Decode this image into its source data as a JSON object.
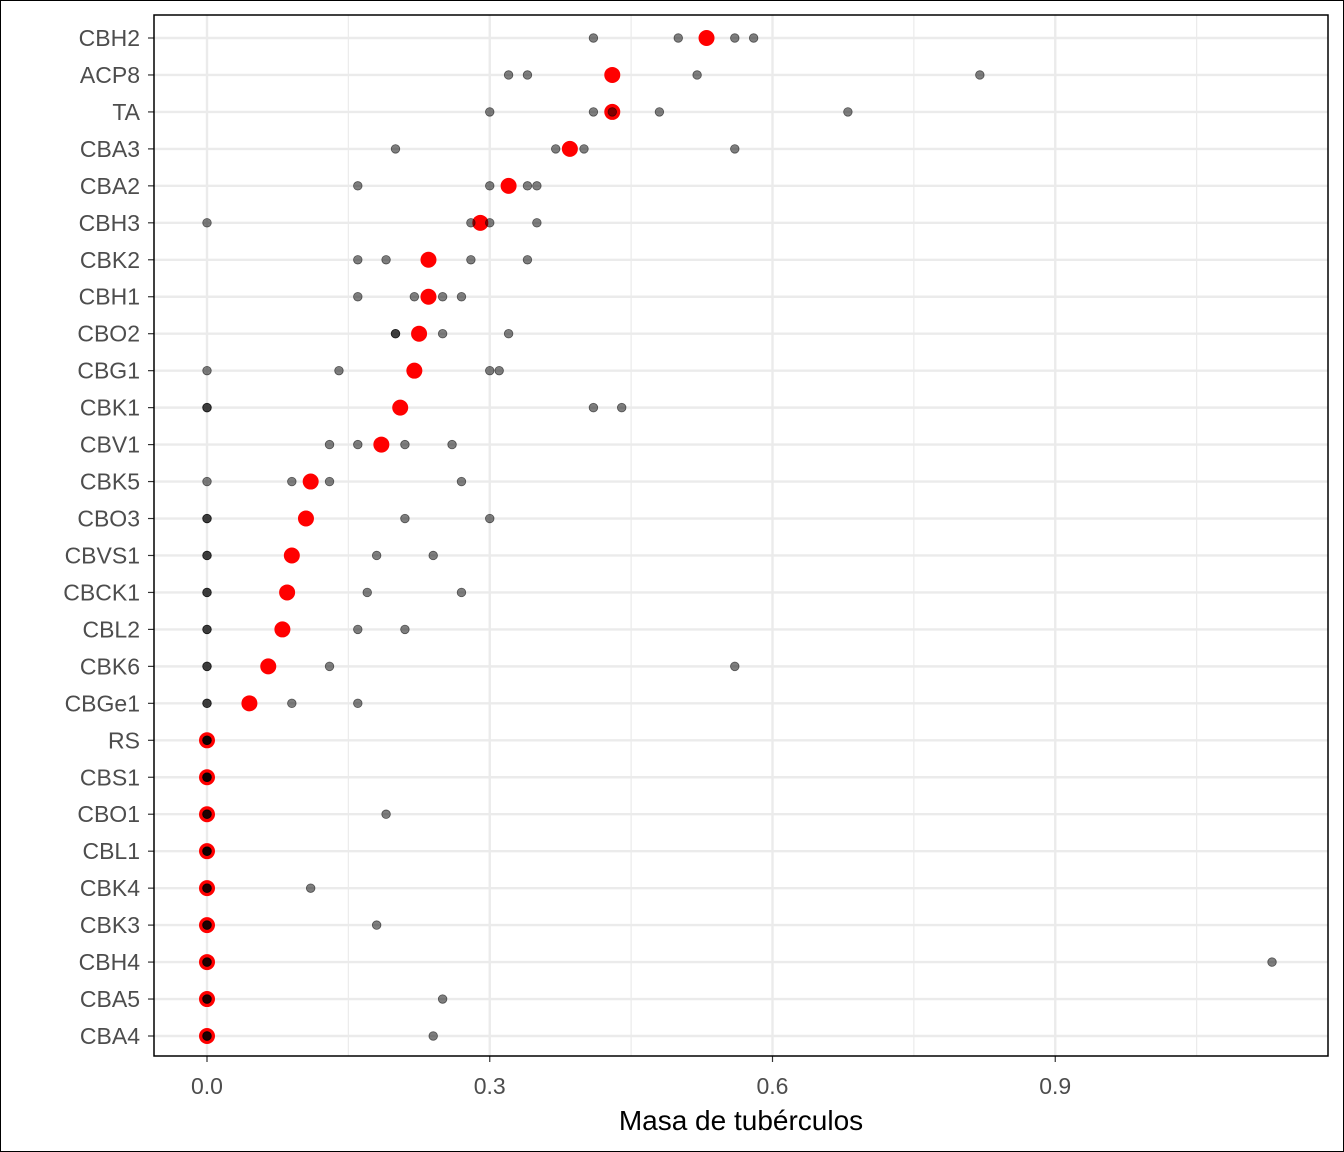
{
  "chart_data": {
    "type": "scatter",
    "title": "",
    "xlabel": "Masa de tubérculos",
    "ylabel": "",
    "xlim": [
      -0.06,
      1.18
    ],
    "x_ticks": [
      {
        "value": 0.0,
        "label": "0.0"
      },
      {
        "value": 0.3,
        "label": "0.3"
      },
      {
        "value": 0.6,
        "label": "0.6"
      },
      {
        "value": 0.9,
        "label": "0.9"
      }
    ],
    "x_minor_ticks": [
      0.15,
      0.45,
      0.75,
      1.05
    ],
    "grid": true,
    "legend": "none",
    "colors": {
      "mean_point": "#ff0000",
      "replicate_point": "#000000",
      "grid": "#ebebeb",
      "tick_text": "#4d4d4d"
    },
    "categories": [
      "CBH2",
      "ACP8",
      "TA",
      "CBA3",
      "CBA2",
      "CBH3",
      "CBK2",
      "CBH1",
      "CBO2",
      "CBG1",
      "CBK1",
      "CBV1",
      "CBK5",
      "CBO3",
      "CBVS1",
      "CBCK1",
      "CBL2",
      "CBK6",
      "CBGe1",
      "RS",
      "CBS1",
      "CBO1",
      "CBL1",
      "CBK4",
      "CBK3",
      "CBH4",
      "CBA5",
      "CBA4"
    ],
    "means": [
      0.53,
      0.43,
      0.43,
      0.385,
      0.32,
      0.29,
      0.235,
      0.235,
      0.225,
      0.22,
      0.205,
      0.185,
      0.11,
      0.105,
      0.09,
      0.085,
      0.08,
      0.065,
      0.045,
      0.0,
      0.0,
      0.0,
      0.0,
      0.0,
      0.0,
      0.0,
      0.0,
      0.0
    ],
    "replicates": [
      [
        0.41,
        0.5,
        0.56,
        0.58
      ],
      [
        0.32,
        0.34,
        0.52,
        0.82
      ],
      [
        0.3,
        0.41,
        0.43,
        0.48,
        0.68
      ],
      [
        0.2,
        0.37,
        0.4,
        0.56
      ],
      [
        0.16,
        0.3,
        0.34,
        0.35
      ],
      [
        0.0,
        0.28,
        0.3,
        0.35
      ],
      [
        0.16,
        0.19,
        0.28,
        0.34
      ],
      [
        0.16,
        0.22,
        0.25,
        0.27
      ],
      [
        0.2,
        0.2,
        0.25,
        0.32
      ],
      [
        0.0,
        0.14,
        0.3,
        0.31
      ],
      [
        0.0,
        0.0,
        0.41,
        0.44
      ],
      [
        0.13,
        0.16,
        0.21,
        0.26
      ],
      [
        0.0,
        0.09,
        0.13,
        0.27
      ],
      [
        0.0,
        0.0,
        0.21,
        0.3
      ],
      [
        0.0,
        0.0,
        0.18,
        0.24
      ],
      [
        0.0,
        0.0,
        0.17,
        0.27
      ],
      [
        0.0,
        0.0,
        0.16,
        0.21
      ],
      [
        0.0,
        0.0,
        0.13,
        0.56
      ],
      [
        0.0,
        0.0,
        0.09,
        0.16
      ],
      [
        0.0,
        0.0,
        0.0,
        0.0
      ],
      [
        0.0,
        0.0,
        0.0,
        0.0
      ],
      [
        0.0,
        0.0,
        0.0,
        0.19
      ],
      [
        0.0,
        0.0,
        0.0,
        0.0
      ],
      [
        0.0,
        0.0,
        0.0,
        0.11
      ],
      [
        0.0,
        0.0,
        0.0,
        0.18
      ],
      [
        0.0,
        0.0,
        0.0,
        1.13
      ],
      [
        0.0,
        0.0,
        0.0,
        0.25
      ],
      [
        0.0,
        0.0,
        0.0,
        0.24
      ]
    ]
  }
}
